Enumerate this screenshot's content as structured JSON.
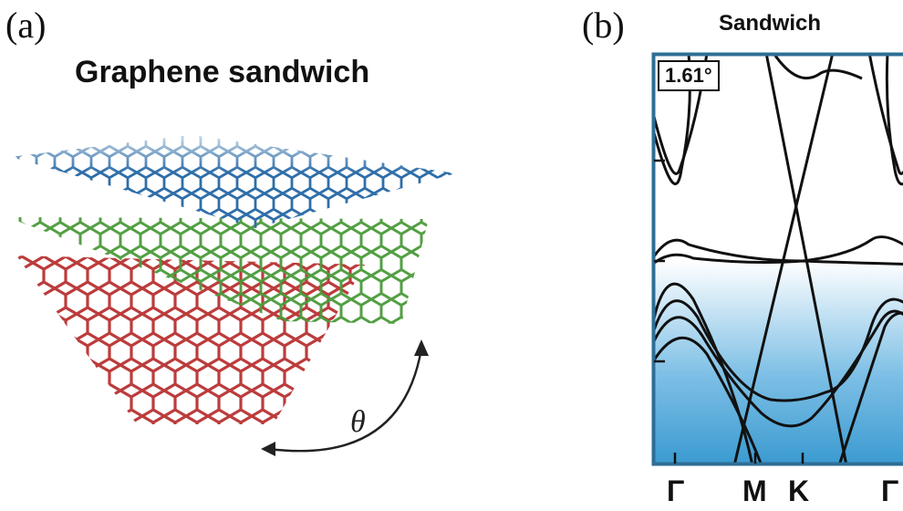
{
  "panel_a": {
    "label": "(a)",
    "title": "Graphene sandwich",
    "angle_symbol": "θ",
    "layers": [
      {
        "name": "top",
        "color": "#2f6ea8"
      },
      {
        "name": "middle",
        "color": "#4a9a3a"
      },
      {
        "name": "bottom",
        "color": "#b83232"
      }
    ]
  },
  "panel_b": {
    "label": "(b)",
    "title": "Sandwich",
    "twist_angle": "1.61°",
    "frame_color": "#2e6e96",
    "fill_color": "#3a9ad0",
    "k_points": [
      "Γ",
      "M",
      "K",
      "Γ"
    ]
  }
}
